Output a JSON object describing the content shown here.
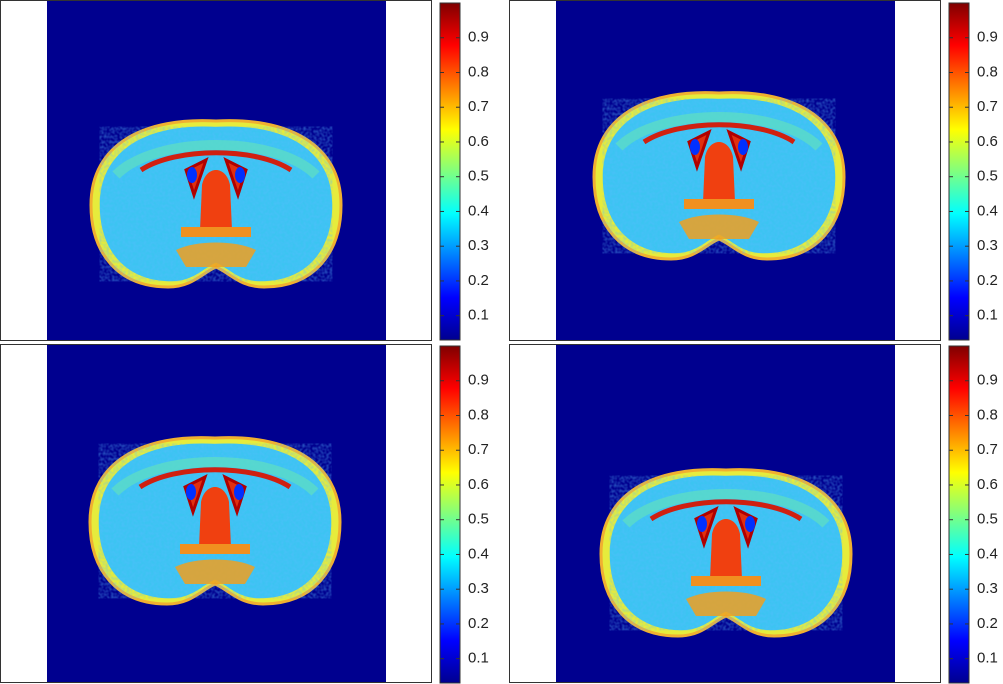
{
  "panels": [
    {
      "colorbar": {
        "clim": [
          0.03,
          1.0
        ],
        "ticks": [
          0.1,
          0.2,
          0.3,
          0.4,
          0.5,
          0.6,
          0.7,
          0.8,
          0.9
        ]
      }
    },
    {
      "colorbar": {
        "clim": [
          0.03,
          1.0
        ],
        "ticks": [
          0.1,
          0.2,
          0.3,
          0.4,
          0.5,
          0.6,
          0.7,
          0.8,
          0.9
        ]
      }
    },
    {
      "colorbar": {
        "clim": [
          0.03,
          1.0
        ],
        "ticks": [
          0.1,
          0.2,
          0.3,
          0.4,
          0.5,
          0.6,
          0.7,
          0.8,
          0.9
        ]
      }
    },
    {
      "colorbar": {
        "clim": [
          0.03,
          1.0
        ],
        "ticks": [
          0.1,
          0.2,
          0.3,
          0.4,
          0.5,
          0.6,
          0.7,
          0.8,
          0.9
        ]
      }
    }
  ]
}
